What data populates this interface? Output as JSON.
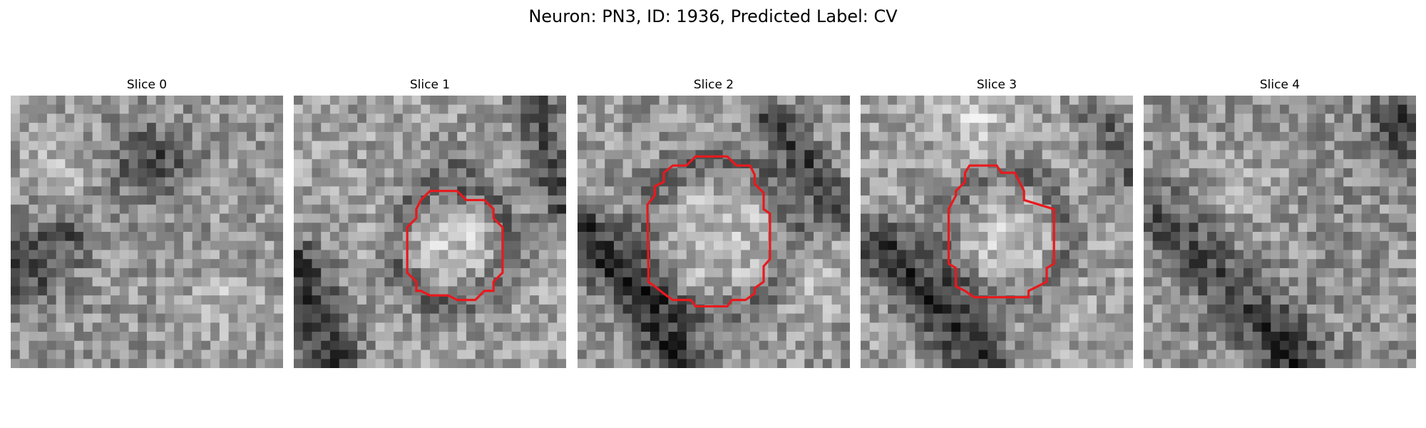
{
  "figure": {
    "title": "Neuron: PN3, ID: 1936, Predicted Label: CV",
    "panels": [
      {
        "title": "Slice 0",
        "has_contour": false,
        "contour_color": "#e8191d"
      },
      {
        "title": "Slice 1",
        "has_contour": true,
        "contour_color": "#e8191d"
      },
      {
        "title": "Slice 2",
        "has_contour": true,
        "contour_color": "#e8191d"
      },
      {
        "title": "Slice 3",
        "has_contour": true,
        "contour_color": "#e8191d"
      },
      {
        "title": "Slice 4",
        "has_contour": false,
        "contour_color": "#e8191d"
      }
    ]
  },
  "style": {
    "colormap": "gray",
    "contour_color": "#e8191d",
    "background": "#ffffff"
  }
}
